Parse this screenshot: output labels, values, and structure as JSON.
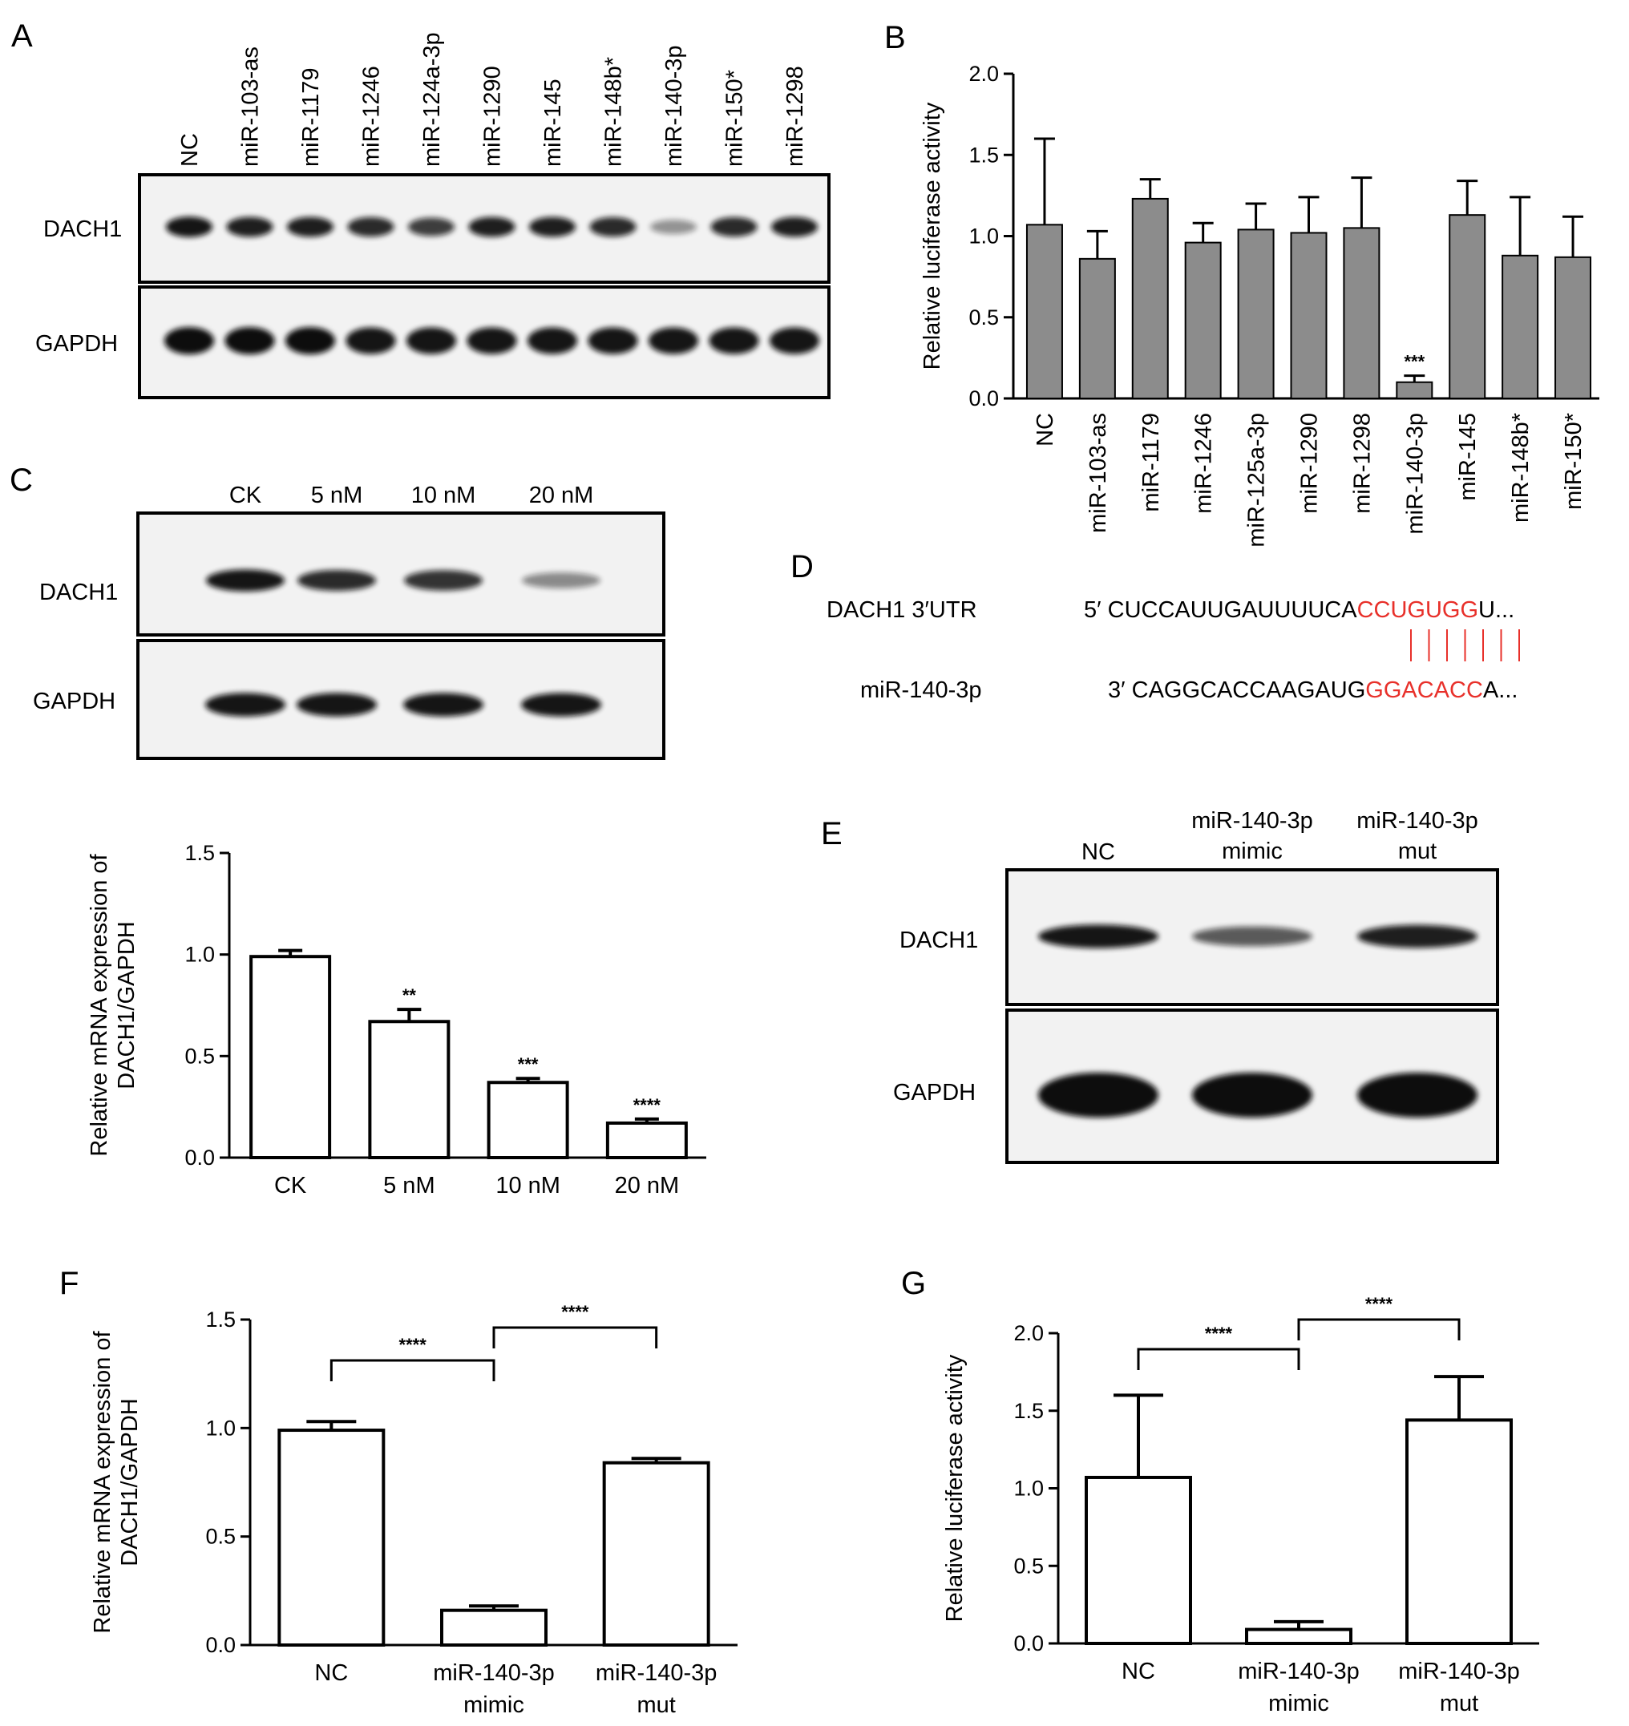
{
  "panels": {
    "A": {
      "letter": "A",
      "lanes": [
        "NC",
        "miR-103-as",
        "miR-1179",
        "miR-1246",
        "miR-124a-3p",
        "miR-1290",
        "miR-145",
        "miR-148b*",
        "miR-140-3p",
        "miR-150*",
        "miR-1298"
      ],
      "rows": [
        "DACH1",
        "GAPDH"
      ],
      "band_intensity": {
        "DACH1": [
          0.95,
          0.9,
          0.9,
          0.85,
          0.75,
          0.9,
          0.9,
          0.85,
          0.3,
          0.85,
          0.9
        ],
        "GAPDH": [
          1,
          1,
          1,
          0.95,
          0.95,
          0.95,
          0.95,
          0.95,
          0.95,
          0.95,
          0.95
        ]
      }
    },
    "B": {
      "letter": "B"
    },
    "C": {
      "letter": "C",
      "lanes": [
        "CK",
        "5 nM",
        "10 nM",
        "20 nM"
      ],
      "rows": [
        "DACH1",
        "GAPDH"
      ],
      "band_intensity": {
        "DACH1": [
          0.95,
          0.85,
          0.8,
          0.35
        ],
        "GAPDH": [
          0.95,
          0.95,
          0.95,
          0.95
        ]
      }
    },
    "D": {
      "letter": "D",
      "utr_label": "DACH1 3′UTR",
      "utr_prefix": "5′ CUCCAUUGAUUUUCA",
      "utr_seed": "CCUGUGG",
      "utr_suffix": "U...",
      "mir_label": "miR-140-3p",
      "mir_prefix": "3′ CAGGCACCAAGAUG",
      "mir_seed": "GGACACC",
      "mir_suffix": "A...",
      "pair_count": 7
    },
    "E": {
      "letter": "E",
      "lanes": [
        [
          "NC"
        ],
        [
          "miR-140-3p",
          "mimic"
        ],
        [
          "miR-140-3p",
          "mut"
        ]
      ],
      "rows": [
        "DACH1",
        "GAPDH"
      ],
      "band_intensity": {
        "DACH1": [
          0.95,
          0.6,
          0.9
        ],
        "GAPDH": [
          1,
          1,
          1
        ]
      }
    },
    "F": {
      "letter": "F"
    },
    "G": {
      "letter": "G"
    }
  },
  "colors": {
    "grey_bar": "#8c8c8c",
    "seed_red": "#e8302a",
    "blot_bg": "#f2f2f2",
    "band": "#101010"
  },
  "chart_data": [
    {
      "id": "B",
      "type": "bar",
      "categories": [
        "NC",
        "miR-103-as",
        "miR-1179",
        "miR-1246",
        "miR-125a-3p",
        "miR-1290",
        "miR-1298",
        "miR-140-3p",
        "miR-145",
        "miR-148b*",
        "miR-150*"
      ],
      "values": [
        1.07,
        0.86,
        1.23,
        0.96,
        1.04,
        1.02,
        1.05,
        0.1,
        1.13,
        0.88,
        0.87
      ],
      "errors": [
        0.53,
        0.17,
        0.12,
        0.12,
        0.16,
        0.22,
        0.31,
        0.04,
        0.21,
        0.36,
        0.25
      ],
      "annotations": [
        "",
        "",
        "",
        "",
        "",
        "",
        "",
        "***",
        "",
        "",
        ""
      ],
      "ylabel": "Relative luciferase activity",
      "xlabel": "",
      "ylim": [
        0,
        2.0
      ],
      "yticks": [
        "0.0",
        "0.5",
        "1.0",
        "1.5",
        "2.0"
      ],
      "fill": "grey"
    },
    {
      "id": "C",
      "type": "bar",
      "categories": [
        "CK",
        "5 nM",
        "10 nM",
        "20 nM"
      ],
      "values": [
        0.99,
        0.67,
        0.37,
        0.17
      ],
      "errors": [
        0.03,
        0.06,
        0.02,
        0.02
      ],
      "annotations": [
        "",
        "**",
        "***",
        "****"
      ],
      "ylabel": [
        "Relative mRNA expression of",
        "DACH1/GAPDH"
      ],
      "xlabel": "",
      "ylim": [
        0,
        1.5
      ],
      "yticks": [
        "0.0",
        "0.5",
        "1.0",
        "1.5"
      ],
      "fill": "white"
    },
    {
      "id": "F",
      "type": "bar",
      "categories": [
        [
          "NC"
        ],
        [
          "miR-140-3p",
          "mimic"
        ],
        [
          "miR-140-3p",
          "mut"
        ]
      ],
      "values": [
        0.99,
        0.16,
        0.84
      ],
      "errors": [
        0.04,
        0.02,
        0.02
      ],
      "brackets": [
        {
          "from": 0,
          "to": 1,
          "label": "****"
        },
        {
          "from": 1,
          "to": 2,
          "label": "****"
        }
      ],
      "ylabel": [
        "Relative mRNA expression of",
        "DACH1/GAPDH"
      ],
      "xlabel": "",
      "ylim": [
        0,
        1.5
      ],
      "yticks": [
        "0.0",
        "0.5",
        "1.0",
        "1.5"
      ],
      "fill": "white"
    },
    {
      "id": "G",
      "type": "bar",
      "categories": [
        [
          "NC"
        ],
        [
          "miR-140-3p",
          "mimic"
        ],
        [
          "miR-140-3p",
          "mut"
        ]
      ],
      "values": [
        1.07,
        0.09,
        1.44
      ],
      "errors": [
        0.53,
        0.05,
        0.28
      ],
      "brackets": [
        {
          "from": 0,
          "to": 1,
          "label": "****"
        },
        {
          "from": 1,
          "to": 2,
          "label": "****"
        }
      ],
      "ylabel": "Relative luciferase activity",
      "xlabel": "",
      "ylim": [
        0,
        2.0
      ],
      "yticks": [
        "0.0",
        "0.5",
        "1.0",
        "1.5",
        "2.0"
      ],
      "fill": "white"
    }
  ]
}
